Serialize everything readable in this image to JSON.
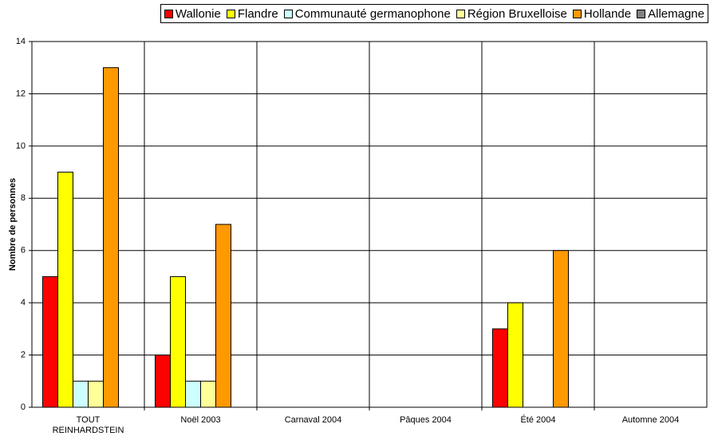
{
  "chart_data": {
    "type": "bar",
    "ylabel": "Nombre de personnes",
    "categories": [
      "TOUT REINHARDSTEIN",
      "Noël 2003",
      "Carnaval 2004",
      "Pâques 2004",
      "Été 2004",
      "Automne 2004"
    ],
    "series": [
      {
        "name": "Wallonie",
        "color": "#ff0000",
        "values": [
          5,
          2,
          0,
          0,
          3,
          0
        ]
      },
      {
        "name": "Flandre",
        "color": "#ffff00",
        "values": [
          9,
          5,
          0,
          0,
          4,
          0
        ]
      },
      {
        "name": "Communauté germanophone",
        "color": "#ccffff",
        "values": [
          1,
          1,
          0,
          0,
          0,
          0
        ]
      },
      {
        "name": "Région Bruxelloise",
        "color": "#ffff99",
        "values": [
          1,
          1,
          0,
          0,
          0,
          0
        ]
      },
      {
        "name": "Hollande",
        "color": "#ff9900",
        "values": [
          13,
          7,
          0,
          0,
          6,
          0
        ]
      },
      {
        "name": "Allemagne",
        "color": "#808080",
        "values": [
          0,
          0,
          0,
          0,
          0,
          0
        ]
      }
    ],
    "ylim": [
      0,
      14
    ],
    "yticks": [
      0,
      2,
      4,
      6,
      8,
      10,
      12,
      14
    ],
    "grid": true,
    "legend": "top"
  }
}
